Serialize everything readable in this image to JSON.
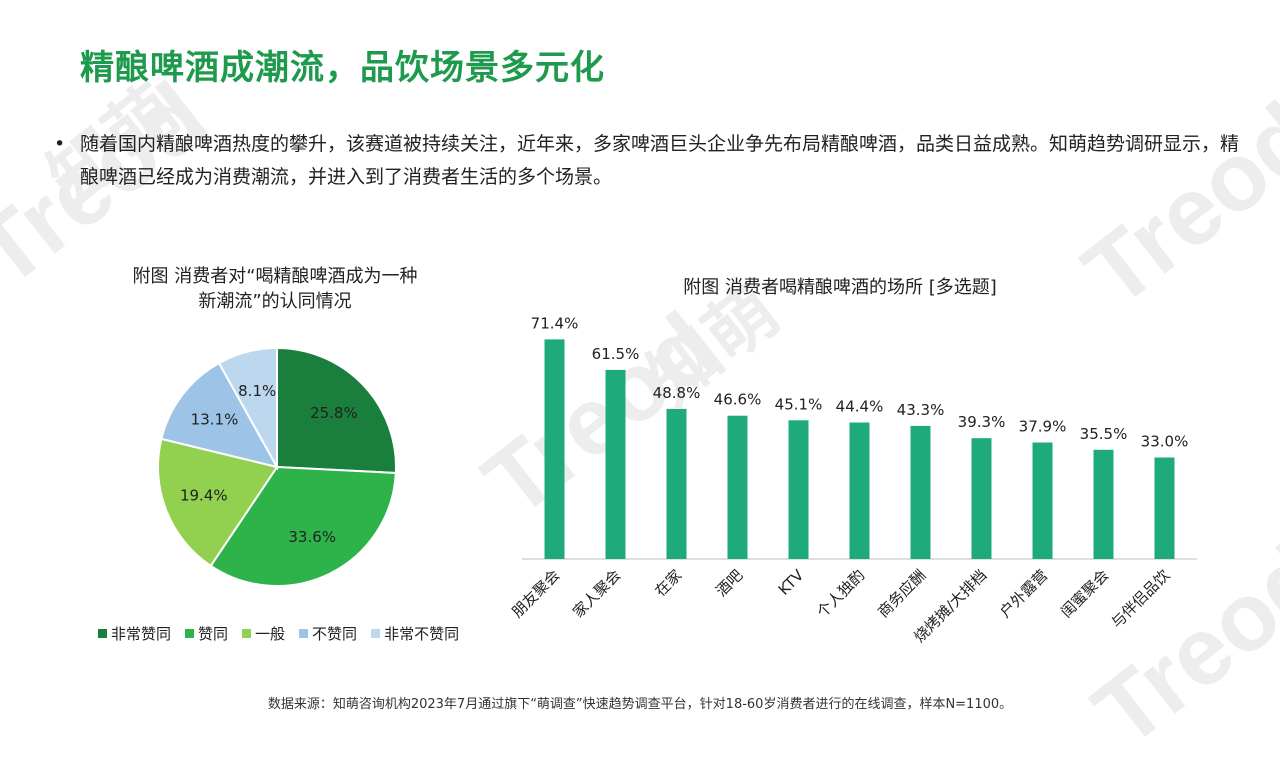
{
  "watermark": {
    "text_latin": "Treod",
    "text_cn": "知萌"
  },
  "title": "精酿啤酒成潮流，品饮场景多元化",
  "bullet": {
    "marker": "•",
    "text": "随着国内精酿啤酒热度的攀升，该赛道被持续关注，近年来，多家啤酒巨头企业争先布局精酿啤酒，品类日益成熟。知萌趋势调研显示，精酿啤酒已经成为消费潮流，并进入到了消费者生活的多个场景。"
  },
  "chart_data": [
    {
      "type": "pie",
      "title": "附图 消费者对“喝精酿啤酒成为一种新潮流”的认同情况",
      "title_lines": [
        "附图 消费者对“喝精酿啤酒成为一种",
        "新潮流”的认同情况"
      ],
      "slices": [
        {
          "label": "非常赞同",
          "value": 25.8,
          "display": "25.8%",
          "color": "#1a7f3c"
        },
        {
          "label": "赞同",
          "value": 33.6,
          "display": "33.6%",
          "color": "#2db34a"
        },
        {
          "label": "一般",
          "value": 19.4,
          "display": "19.4%",
          "color": "#92d050"
        },
        {
          "label": "不赞同",
          "value": 13.1,
          "display": "13.1%",
          "color": "#9dc3e6"
        },
        {
          "label": "非常不赞同",
          "value": 8.1,
          "display": "8.1%",
          "color": "#bdd7ee"
        }
      ],
      "legend_position": "bottom"
    },
    {
      "type": "bar",
      "title": "附图 消费者喝精酿啤酒的场所 [多选题]",
      "categories": [
        "朋友聚会",
        "家人聚会",
        "在家",
        "酒吧",
        "KTV",
        "个人独酌",
        "商务应酬",
        "烧烤摊/大排档",
        "户外露营",
        "闺蜜聚会",
        "与伴侣品饮"
      ],
      "values": [
        71.4,
        61.5,
        48.8,
        46.6,
        45.1,
        44.4,
        43.3,
        39.3,
        37.9,
        35.5,
        33.0
      ],
      "value_labels": [
        "71.4%",
        "61.5%",
        "48.8%",
        "46.6%",
        "45.1%",
        "44.4%",
        "43.3%",
        "39.3%",
        "37.9%",
        "35.5%",
        "33.0%"
      ],
      "ylim": [
        0,
        80
      ],
      "bar_color": "#1faa7c",
      "grid": false
    }
  ],
  "source": "数据来源：知萌咨询机构2023年7月通过旗下“萌调查”快速趋势调查平台，针对18-60岁消费者进行的在线调查，样本N=1100。"
}
